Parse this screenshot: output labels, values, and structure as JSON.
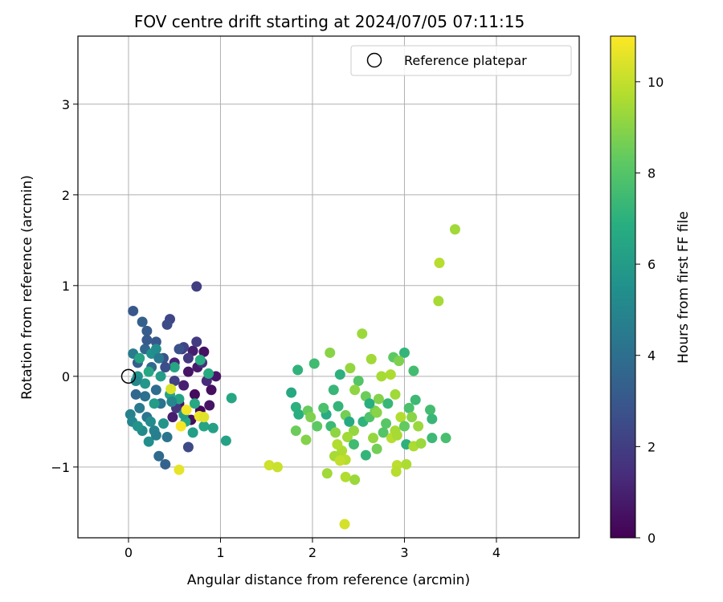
{
  "chart_data": {
    "type": "scatter",
    "title": "FOV centre drift starting at 2024/07/05 07:11:15",
    "xlabel": "Angular distance from reference (arcmin)",
    "ylabel": "Rotation from reference (arcmin)",
    "xlim": [
      -0.55,
      4.9
    ],
    "ylim": [
      -1.78,
      3.75
    ],
    "xticks": [
      0,
      1,
      2,
      3,
      4
    ],
    "yticks": [
      -1,
      0,
      1,
      2,
      3
    ],
    "xtick_labels": [
      "0",
      "1",
      "2",
      "3",
      "4"
    ],
    "ytick_labels": [
      "−1",
      "0",
      "1",
      "2",
      "3"
    ],
    "grid": true,
    "legend": {
      "label": "Reference platepar",
      "placement": "top-right",
      "marker": "hollow-circle"
    },
    "reference_point": {
      "x": 0,
      "y": 0
    },
    "colorbar": {
      "label": "Hours from first FF file",
      "colormap": "viridis",
      "min": 0,
      "max": 11,
      "ticks": [
        0,
        2,
        4,
        6,
        8,
        10
      ],
      "tick_labels": [
        "0",
        "2",
        "4",
        "6",
        "8",
        "10"
      ]
    },
    "points": [
      {
        "x": 0.72,
        "y": -0.2,
        "h": 0.3
      },
      {
        "x": 0.78,
        "y": -0.38,
        "h": 0.2
      },
      {
        "x": 0.82,
        "y": 0.27,
        "h": 0.5
      },
      {
        "x": 0.9,
        "y": -0.15,
        "h": 0.4
      },
      {
        "x": 0.88,
        "y": -0.32,
        "h": 0.6
      },
      {
        "x": 0.75,
        "y": 0.1,
        "h": 0.8
      },
      {
        "x": 0.7,
        "y": 0.28,
        "h": 0.9
      },
      {
        "x": 0.95,
        "y": 0.0,
        "h": 0.7
      },
      {
        "x": 0.6,
        "y": -0.1,
        "h": 1.0
      },
      {
        "x": 0.55,
        "y": -0.3,
        "h": 0.5
      },
      {
        "x": 0.5,
        "y": 0.15,
        "h": 1.1
      },
      {
        "x": 0.65,
        "y": 0.05,
        "h": 0.6
      },
      {
        "x": 0.85,
        "y": -0.05,
        "h": 1.3
      },
      {
        "x": 0.48,
        "y": -0.45,
        "h": 0.9
      },
      {
        "x": 0.68,
        "y": -0.48,
        "h": 0.4
      },
      {
        "x": 0.8,
        "y": 0.15,
        "h": 1.5
      },
      {
        "x": 0.58,
        "y": 0.3,
        "h": 1.6
      },
      {
        "x": 0.74,
        "y": 0.38,
        "h": 1.9
      },
      {
        "x": 0.74,
        "y": 0.99,
        "h": 2.0
      },
      {
        "x": 0.45,
        "y": 0.63,
        "h": 2.3
      },
      {
        "x": 0.42,
        "y": 0.57,
        "h": 2.5
      },
      {
        "x": 0.65,
        "y": -0.78,
        "h": 2.4
      },
      {
        "x": 0.6,
        "y": 0.32,
        "h": 2.2
      },
      {
        "x": 0.52,
        "y": -0.35,
        "h": 1.7
      },
      {
        "x": 0.38,
        "y": 0.2,
        "h": 2.8
      },
      {
        "x": 0.3,
        "y": 0.38,
        "h": 3.0
      },
      {
        "x": 0.2,
        "y": 0.5,
        "h": 3.2
      },
      {
        "x": 0.15,
        "y": 0.6,
        "h": 3.4
      },
      {
        "x": 0.05,
        "y": 0.72,
        "h": 3.0
      },
      {
        "x": 0.18,
        "y": 0.3,
        "h": 3.6
      },
      {
        "x": 0.25,
        "y": 0.1,
        "h": 3.8
      },
      {
        "x": 0.1,
        "y": 0.15,
        "h": 3.3
      },
      {
        "x": 0.3,
        "y": -0.15,
        "h": 3.9
      },
      {
        "x": 0.35,
        "y": -0.3,
        "h": 4.1
      },
      {
        "x": 0.2,
        "y": -0.45,
        "h": 4.3
      },
      {
        "x": 0.12,
        "y": -0.35,
        "h": 4.5
      },
      {
        "x": 0.08,
        "y": -0.2,
        "h": 3.7
      },
      {
        "x": 0.05,
        "y": 0.25,
        "h": 4.6
      },
      {
        "x": 0.02,
        "y": -0.42,
        "h": 4.8
      },
      {
        "x": 0.04,
        "y": -0.5,
        "h": 5.0
      },
      {
        "x": 0.15,
        "y": -0.6,
        "h": 5.2
      },
      {
        "x": 0.22,
        "y": -0.72,
        "h": 5.4
      },
      {
        "x": 0.28,
        "y": -0.6,
        "h": 4.9
      },
      {
        "x": 0.33,
        "y": -0.88,
        "h": 3.8
      },
      {
        "x": 0.4,
        "y": -0.97,
        "h": 3.5
      },
      {
        "x": 0.42,
        "y": -0.67,
        "h": 4.2
      },
      {
        "x": 0.1,
        "y": 0.0,
        "h": 5.6
      },
      {
        "x": 0.18,
        "y": -0.08,
        "h": 5.8
      },
      {
        "x": 0.25,
        "y": 0.25,
        "h": 5.5
      },
      {
        "x": 0.35,
        "y": 0.0,
        "h": 6.0
      },
      {
        "x": 0.45,
        "y": -0.2,
        "h": 6.2
      },
      {
        "x": 0.5,
        "y": 0.1,
        "h": 6.4
      },
      {
        "x": 0.55,
        "y": -0.25,
        "h": 6.3
      },
      {
        "x": 0.62,
        "y": -0.5,
        "h": 6.5
      },
      {
        "x": 0.7,
        "y": -0.62,
        "h": 6.1
      },
      {
        "x": 0.72,
        "y": -0.3,
        "h": 6.6
      },
      {
        "x": 0.78,
        "y": 0.18,
        "h": 6.8
      },
      {
        "x": 0.87,
        "y": 0.03,
        "h": 6.7
      },
      {
        "x": 0.82,
        "y": -0.55,
        "h": 6.4
      },
      {
        "x": 0.92,
        "y": -0.57,
        "h": 6.2
      },
      {
        "x": 1.06,
        "y": -0.71,
        "h": 6.3
      },
      {
        "x": 1.12,
        "y": -0.24,
        "h": 6.5
      },
      {
        "x": 0.6,
        "y": -0.42,
        "h": 5.9
      },
      {
        "x": 0.38,
        "y": -0.52,
        "h": 5.7
      },
      {
        "x": 0.28,
        "y": -0.3,
        "h": 6.0
      },
      {
        "x": 0.22,
        "y": 0.05,
        "h": 6.6
      },
      {
        "x": 0.12,
        "y": 0.2,
        "h": 6.4
      },
      {
        "x": 0.3,
        "y": 0.3,
        "h": 5.3
      },
      {
        "x": 0.4,
        "y": 0.1,
        "h": 2.6
      },
      {
        "x": 0.5,
        "y": -0.05,
        "h": 2.1
      },
      {
        "x": 0.65,
        "y": 0.2,
        "h": 1.8
      },
      {
        "x": 0.55,
        "y": 0.3,
        "h": 2.7
      },
      {
        "x": 0.18,
        "y": -0.22,
        "h": 4.0
      },
      {
        "x": 0.08,
        "y": -0.05,
        "h": 5.1
      },
      {
        "x": 0.2,
        "y": 0.4,
        "h": 3.1
      },
      {
        "x": 0.33,
        "y": 0.2,
        "h": 4.4
      },
      {
        "x": 0.24,
        "y": -0.5,
        "h": 5.3
      },
      {
        "x": 0.1,
        "y": -0.55,
        "h": 5.6
      },
      {
        "x": 0.3,
        "y": -0.65,
        "h": 4.7
      },
      {
        "x": 0.47,
        "y": -0.28,
        "h": 5.0
      },
      {
        "x": 0.57,
        "y": -0.55,
        "h": 10.9
      },
      {
        "x": 0.63,
        "y": -0.37,
        "h": 10.8
      },
      {
        "x": 0.55,
        "y": -1.03,
        "h": 10.6
      },
      {
        "x": 0.77,
        "y": -0.44,
        "h": 10.7
      },
      {
        "x": 0.82,
        "y": -0.45,
        "h": 10.5
      },
      {
        "x": 0.46,
        "y": -0.14,
        "h": 10.4
      },
      {
        "x": 2.54,
        "y": 0.47,
        "h": 9.3
      },
      {
        "x": 2.19,
        "y": 0.26,
        "h": 9.0
      },
      {
        "x": 2.64,
        "y": 0.19,
        "h": 9.4
      },
      {
        "x": 2.88,
        "y": 0.21,
        "h": 8.2
      },
      {
        "x": 3.0,
        "y": 0.26,
        "h": 7.2
      },
      {
        "x": 2.94,
        "y": 0.17,
        "h": 8.8
      },
      {
        "x": 2.02,
        "y": 0.14,
        "h": 7.5
      },
      {
        "x": 1.84,
        "y": 0.07,
        "h": 7.1
      },
      {
        "x": 2.41,
        "y": 0.09,
        "h": 9.2
      },
      {
        "x": 2.75,
        "y": 0.0,
        "h": 9.5
      },
      {
        "x": 2.85,
        "y": 0.02,
        "h": 9.6
      },
      {
        "x": 3.1,
        "y": 0.06,
        "h": 7.6
      },
      {
        "x": 2.3,
        "y": 0.02,
        "h": 7.0
      },
      {
        "x": 2.5,
        "y": -0.05,
        "h": 8.0
      },
      {
        "x": 1.77,
        "y": -0.18,
        "h": 6.6
      },
      {
        "x": 2.46,
        "y": -0.15,
        "h": 9.1
      },
      {
        "x": 2.23,
        "y": -0.15,
        "h": 7.3
      },
      {
        "x": 2.58,
        "y": -0.22,
        "h": 8.5
      },
      {
        "x": 2.72,
        "y": -0.25,
        "h": 8.9
      },
      {
        "x": 2.9,
        "y": -0.2,
        "h": 9.4
      },
      {
        "x": 3.05,
        "y": -0.35,
        "h": 7.8
      },
      {
        "x": 3.12,
        "y": -0.26,
        "h": 7.4
      },
      {
        "x": 1.82,
        "y": -0.34,
        "h": 7.0
      },
      {
        "x": 1.85,
        "y": -0.42,
        "h": 6.9
      },
      {
        "x": 1.95,
        "y": -0.38,
        "h": 8.4
      },
      {
        "x": 1.98,
        "y": -0.45,
        "h": 8.8
      },
      {
        "x": 2.15,
        "y": -0.42,
        "h": 6.8
      },
      {
        "x": 2.2,
        "y": -0.55,
        "h": 7.4
      },
      {
        "x": 2.28,
        "y": -0.33,
        "h": 7.2
      },
      {
        "x": 2.36,
        "y": -0.43,
        "h": 8.6
      },
      {
        "x": 2.45,
        "y": -0.6,
        "h": 9.2
      },
      {
        "x": 2.55,
        "y": -0.5,
        "h": 7.1
      },
      {
        "x": 2.62,
        "y": -0.45,
        "h": 7.9
      },
      {
        "x": 2.68,
        "y": -0.38,
        "h": 8.7
      },
      {
        "x": 2.8,
        "y": -0.52,
        "h": 8.1
      },
      {
        "x": 2.9,
        "y": -0.6,
        "h": 9.5
      },
      {
        "x": 2.96,
        "y": -0.45,
        "h": 9.7
      },
      {
        "x": 3.0,
        "y": -0.55,
        "h": 8.3
      },
      {
        "x": 3.08,
        "y": -0.45,
        "h": 9.0
      },
      {
        "x": 3.15,
        "y": -0.55,
        "h": 9.3
      },
      {
        "x": 3.28,
        "y": -0.37,
        "h": 7.6
      },
      {
        "x": 3.3,
        "y": -0.47,
        "h": 7.3
      },
      {
        "x": 1.82,
        "y": -0.6,
        "h": 8.5
      },
      {
        "x": 1.93,
        "y": -0.7,
        "h": 8.9
      },
      {
        "x": 2.05,
        "y": -0.55,
        "h": 8.2
      },
      {
        "x": 2.25,
        "y": -0.62,
        "h": 9.1
      },
      {
        "x": 2.32,
        "y": -0.82,
        "h": 9.6
      },
      {
        "x": 2.38,
        "y": -0.67,
        "h": 9.4
      },
      {
        "x": 2.45,
        "y": -0.75,
        "h": 7.5
      },
      {
        "x": 2.58,
        "y": -0.87,
        "h": 7.2
      },
      {
        "x": 2.66,
        "y": -0.68,
        "h": 9.2
      },
      {
        "x": 2.7,
        "y": -0.8,
        "h": 8.6
      },
      {
        "x": 2.77,
        "y": -0.62,
        "h": 8.0
      },
      {
        "x": 2.86,
        "y": -0.68,
        "h": 9.8
      },
      {
        "x": 2.92,
        "y": -0.65,
        "h": 9.5
      },
      {
        "x": 3.02,
        "y": -0.75,
        "h": 7.0
      },
      {
        "x": 3.1,
        "y": -0.77,
        "h": 9.6
      },
      {
        "x": 3.18,
        "y": -0.74,
        "h": 9.3
      },
      {
        "x": 3.3,
        "y": -0.68,
        "h": 7.4
      },
      {
        "x": 3.45,
        "y": -0.68,
        "h": 7.7
      },
      {
        "x": 2.24,
        "y": -0.88,
        "h": 9.5
      },
      {
        "x": 2.27,
        "y": -0.75,
        "h": 9.7
      },
      {
        "x": 2.36,
        "y": -0.92,
        "h": 9.8
      },
      {
        "x": 2.3,
        "y": -0.93,
        "h": 10.0
      },
      {
        "x": 2.92,
        "y": -0.98,
        "h": 9.9
      },
      {
        "x": 2.91,
        "y": -1.05,
        "h": 9.8
      },
      {
        "x": 3.02,
        "y": -0.97,
        "h": 9.6
      },
      {
        "x": 2.16,
        "y": -1.07,
        "h": 9.4
      },
      {
        "x": 2.36,
        "y": -1.11,
        "h": 9.7
      },
      {
        "x": 2.46,
        "y": -1.14,
        "h": 9.3
      },
      {
        "x": 1.53,
        "y": -0.98,
        "h": 10.2
      },
      {
        "x": 1.62,
        "y": -1.0,
        "h": 10.1
      },
      {
        "x": 2.35,
        "y": -1.63,
        "h": 10.3
      },
      {
        "x": 3.55,
        "y": 1.62,
        "h": 9.4
      },
      {
        "x": 3.38,
        "y": 1.25,
        "h": 9.8
      },
      {
        "x": 3.37,
        "y": 0.83,
        "h": 9.5
      },
      {
        "x": 2.7,
        "y": -0.4,
        "h": 9.0
      },
      {
        "x": 2.82,
        "y": -0.3,
        "h": 7.3
      },
      {
        "x": 2.62,
        "y": -0.3,
        "h": 6.9
      },
      {
        "x": 2.4,
        "y": -0.5,
        "h": 6.7
      },
      {
        "x": 2.12,
        "y": -0.35,
        "h": 7.8
      }
    ]
  }
}
